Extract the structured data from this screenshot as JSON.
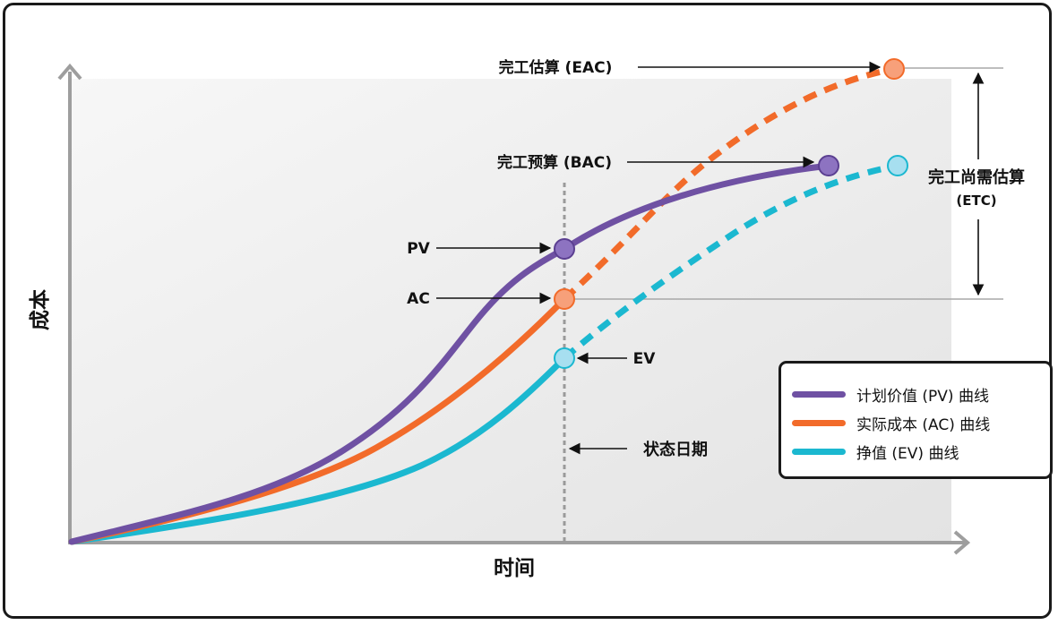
{
  "axes": {
    "y_label": "成本",
    "x_label": "时间"
  },
  "annotations": {
    "eac": "完工估算 (EAC)",
    "bac": "完工预算 (BAC)",
    "etc_line1": "完工尚需估算",
    "etc_line2": "(ETC)",
    "pv": "PV",
    "ac": "AC",
    "ev": "EV",
    "status_date": "状态日期"
  },
  "legend": {
    "pv": "计划价值 (PV) 曲线",
    "ac": "实际成本 (AC) 曲线",
    "ev": "挣值 (EV) 曲线"
  },
  "colors": {
    "pv": "#6f51a3",
    "ac": "#f26b2a",
    "ev": "#1bb8d0",
    "pv_point": "#8d73c1",
    "ac_point": "#f7a07a",
    "ev_point": "#a7dff0",
    "axis": "#9e9e9e",
    "status_line": "#9a9a9a"
  }
}
